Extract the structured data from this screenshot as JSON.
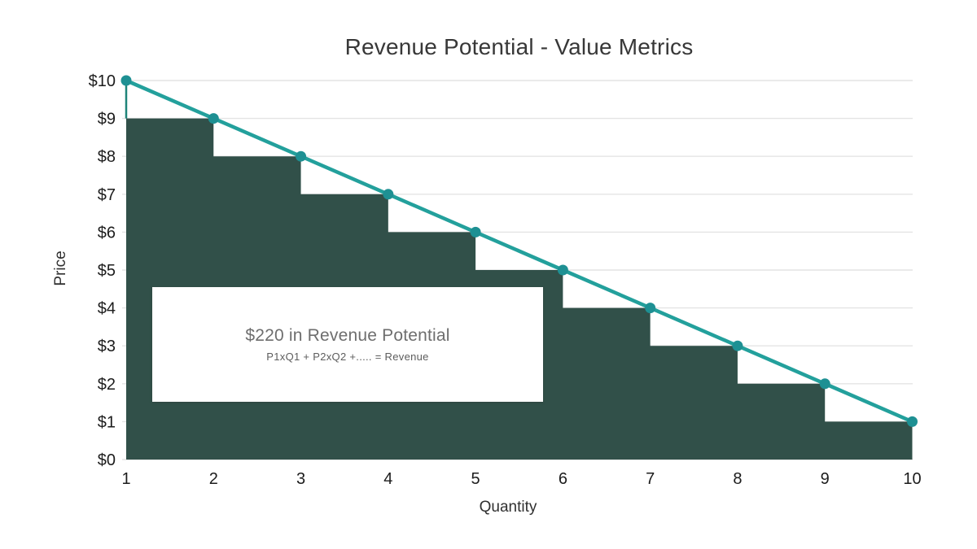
{
  "chart_data": {
    "type": "line",
    "title": "Revenue Potential - Value Metrics",
    "xlabel": "Quantity",
    "ylabel": "Price",
    "x": [
      1,
      2,
      3,
      4,
      5,
      6,
      7,
      8,
      9,
      10
    ],
    "xlim": [
      1,
      10
    ],
    "ylim": [
      0,
      10
    ],
    "grid": "horizontal",
    "legend_position": "none",
    "series": [
      {
        "name": "demand-line",
        "type": "line-with-markers",
        "values": [
          10,
          9,
          8,
          7,
          6,
          5,
          4,
          3,
          2,
          1
        ],
        "color": "#23a09c",
        "marker_color": "#1e9093"
      },
      {
        "name": "captured-revenue-steps",
        "type": "step-area",
        "interval_start_x": [
          1,
          2,
          3,
          4,
          5,
          6,
          7,
          8,
          9
        ],
        "interval_heights": [
          9,
          8,
          7,
          6,
          5,
          4,
          3,
          2,
          1
        ],
        "color": "#315049"
      }
    ],
    "ytick_labels": [
      "$0",
      "$1",
      "$2",
      "$3",
      "$4",
      "$5",
      "$6",
      "$7",
      "$8",
      "$9",
      "$10"
    ],
    "xtick_labels": [
      "1",
      "2",
      "3",
      "4",
      "5",
      "6",
      "7",
      "8",
      "9",
      "10"
    ],
    "annotation": {
      "heading": "$220 in Revenue Potential",
      "formula": "P1xQ1 + P2xQ2 +..... = Revenue"
    },
    "colors": {
      "grid": "#e4e4e4",
      "tick_text": "#1c1c1c",
      "area_edge": "#1f8579",
      "title_text": "#383838",
      "annotation_text": "#6e6e6e"
    }
  }
}
